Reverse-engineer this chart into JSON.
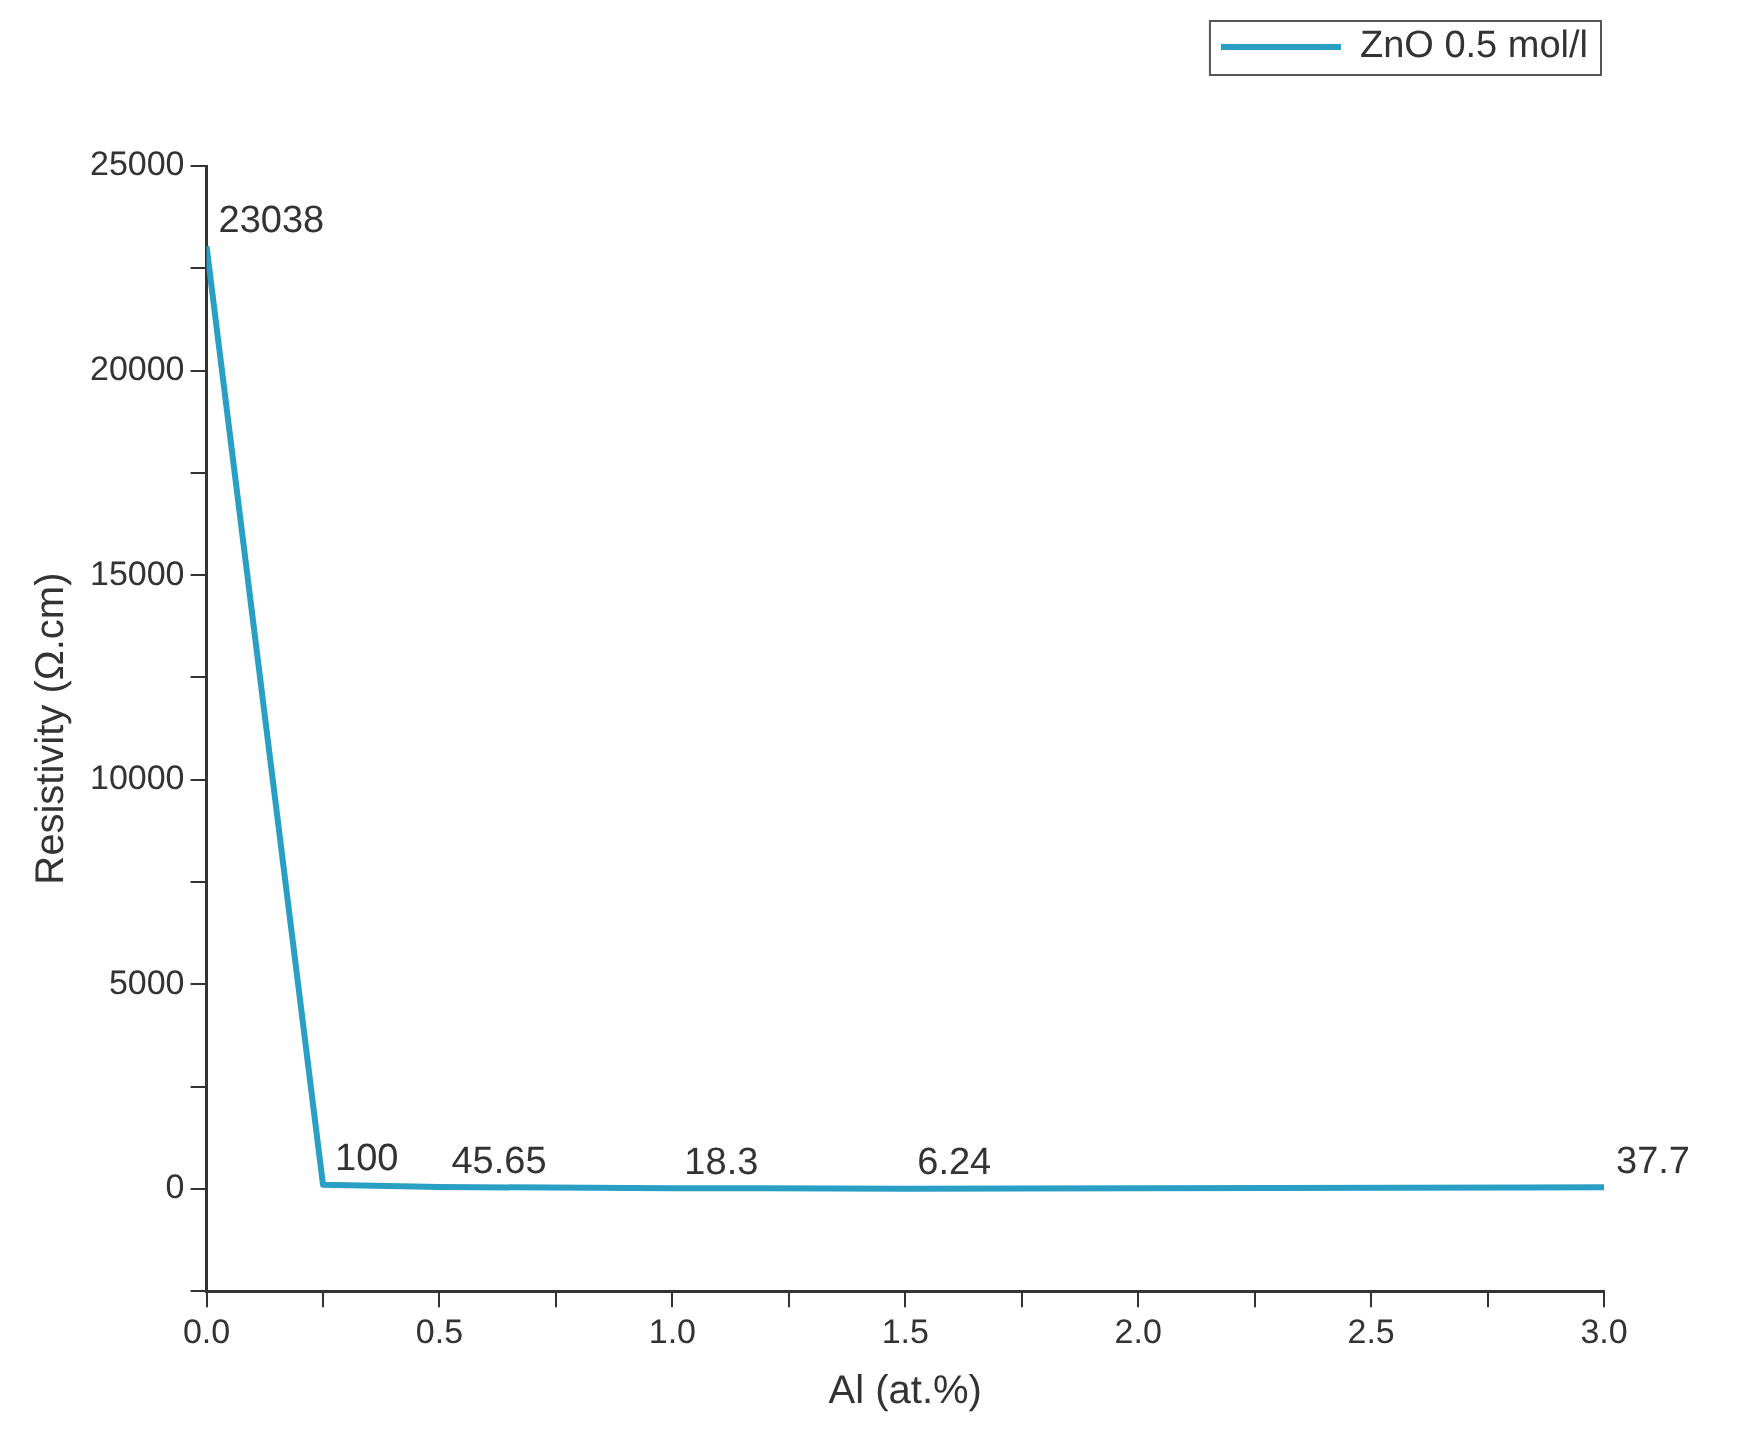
{
  "chart_data": {
    "type": "line",
    "xlabel": "Al (at.%)",
    "ylabel": "Resistivity (Ω.cm)",
    "x": [
      0,
      0.25,
      0.5,
      1.0,
      1.5,
      3.0
    ],
    "series": [
      {
        "name": "ZnO 0.5 mol/l",
        "color": "#2a9fc4",
        "values": [
          23038,
          100,
          45.65,
          18.3,
          6.24,
          37.7
        ]
      }
    ],
    "xlim": [
      0,
      3
    ],
    "xticks": [
      {
        "value": 0,
        "label": "0.0"
      },
      {
        "value": 0.25,
        "label": null
      },
      {
        "value": 0.5,
        "label": "0.5"
      },
      {
        "value": 0.75,
        "label": null
      },
      {
        "value": 1,
        "label": "1.0"
      },
      {
        "value": 1.25,
        "label": null
      },
      {
        "value": 1.5,
        "label": "1.5"
      },
      {
        "value": 1.75,
        "label": null
      },
      {
        "value": 2,
        "label": "2.0"
      },
      {
        "value": 2.25,
        "label": null
      },
      {
        "value": 2.5,
        "label": "2.5"
      },
      {
        "value": 2.75,
        "label": null
      },
      {
        "value": 3,
        "label": "3.0"
      }
    ],
    "ylim": [
      -2500,
      25000
    ],
    "yticks": [
      {
        "value": -2500,
        "label": null
      },
      0,
      {
        "value": 2500,
        "label": null
      },
      5000,
      {
        "value": 7500,
        "label": null
      },
      10000,
      {
        "value": 12500,
        "label": null
      },
      15000,
      {
        "value": 17500,
        "label": null
      },
      20000,
      {
        "value": 22500,
        "label": null
      },
      25000
    ],
    "data_labels": true,
    "grid": false,
    "legend": "top right",
    "marker": "none",
    "line_style": "solid"
  }
}
